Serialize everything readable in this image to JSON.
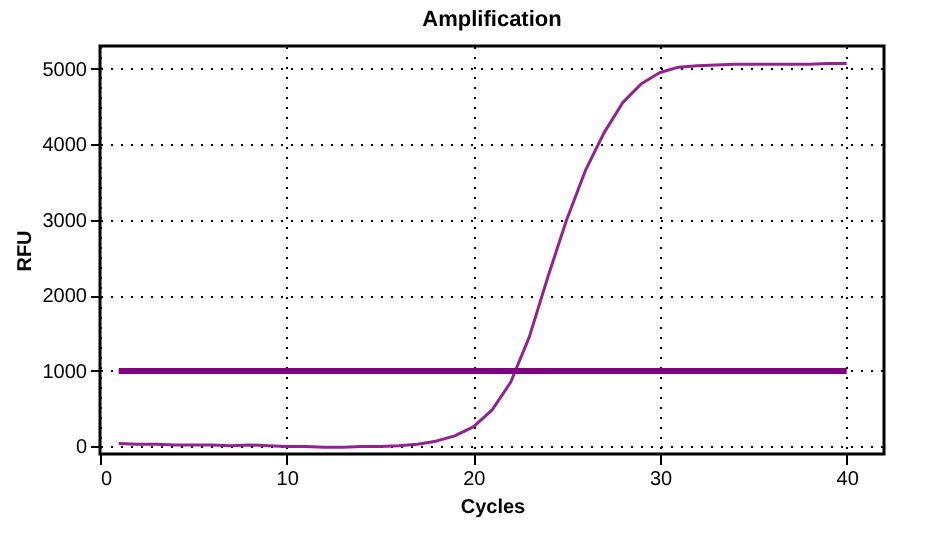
{
  "chart_data": {
    "type": "line",
    "title": "Amplification",
    "xlabel": "Cycles",
    "ylabel": "RFU",
    "x": [
      1,
      2,
      3,
      4,
      5,
      6,
      7,
      8,
      9,
      10,
      11,
      12,
      13,
      14,
      15,
      16,
      17,
      18,
      19,
      20,
      21,
      22,
      23,
      24,
      25,
      26,
      27,
      28,
      29,
      30,
      31,
      32,
      33,
      34,
      35,
      36,
      37,
      38,
      39,
      40
    ],
    "series": [
      {
        "color": "#912391",
        "values": [
          40,
          30,
          30,
          20,
          20,
          20,
          10,
          20,
          10,
          0,
          0,
          -10,
          -10,
          0,
          0,
          10,
          30,
          70,
          140,
          260,
          480,
          850,
          1450,
          2250,
          3000,
          3650,
          4150,
          4550,
          4800,
          4950,
          5020,
          5040,
          5050,
          5060,
          5060,
          5060,
          5060,
          5060,
          5070,
          5070
        ]
      }
    ],
    "xlim": [
      0,
      42
    ],
    "xticks": [
      0,
      10,
      20,
      30,
      40
    ],
    "ylim": [
      -100,
      5300
    ],
    "yticks": [
      0,
      1000,
      2000,
      3000,
      4000,
      5000
    ],
    "grid": true,
    "marker": "none",
    "line_style": "solid",
    "ref_lines": [
      {
        "axis": "y",
        "value": 1000,
        "color": "#800080"
      }
    ]
  }
}
